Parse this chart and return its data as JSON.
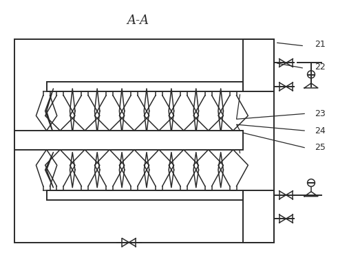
{
  "title": "A-A",
  "label_21": "21",
  "label_22": "22",
  "label_23": "23",
  "label_24": "24",
  "label_25": "25",
  "bg_color": "#ffffff",
  "line_color": "#2a2a2a",
  "lw_main": 1.4,
  "lw_detail": 1.1,
  "n_nozzles": 8,
  "figsize": [
    4.91,
    3.87
  ],
  "dpi": 100
}
